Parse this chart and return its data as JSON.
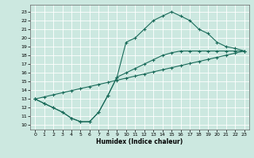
{
  "xlabel": "Humidex (Indice chaleur)",
  "bg_color": "#cce8e0",
  "line_color": "#1a6b5a",
  "xlim": [
    -0.5,
    23.5
  ],
  "ylim": [
    9.5,
    23.8
  ],
  "xticks": [
    0,
    1,
    2,
    3,
    4,
    5,
    6,
    7,
    8,
    9,
    10,
    11,
    12,
    13,
    14,
    15,
    16,
    17,
    18,
    19,
    20,
    21,
    22,
    23
  ],
  "yticks": [
    10,
    11,
    12,
    13,
    14,
    15,
    16,
    17,
    18,
    19,
    20,
    21,
    22,
    23
  ],
  "line1_x": [
    0,
    1,
    2,
    3,
    4,
    5,
    6,
    7,
    8,
    9,
    10,
    11,
    12,
    13,
    14,
    15,
    16,
    17,
    18,
    19,
    20,
    21,
    22,
    23
  ],
  "line1_y": [
    13.0,
    12.5,
    12.0,
    11.5,
    10.8,
    10.4,
    10.4,
    11.5,
    13.4,
    15.5,
    19.5,
    20.0,
    21.0,
    22.0,
    22.5,
    23.0,
    22.5,
    22.0,
    21.0,
    20.5,
    19.5,
    19.0,
    18.8,
    18.5
  ],
  "line2_x": [
    0,
    1,
    2,
    3,
    4,
    5,
    6,
    7,
    8,
    9,
    10,
    11,
    12,
    13,
    14,
    15,
    16,
    17,
    18,
    19,
    20,
    21,
    22,
    23
  ],
  "line2_y": [
    13.0,
    13.24,
    13.48,
    13.72,
    13.96,
    14.2,
    14.43,
    14.67,
    14.91,
    15.15,
    15.39,
    15.63,
    15.87,
    16.11,
    16.35,
    16.59,
    16.83,
    17.07,
    17.3,
    17.54,
    17.78,
    18.02,
    18.26,
    18.5
  ],
  "line3_x": [
    0,
    1,
    2,
    3,
    4,
    5,
    6,
    7,
    8,
    9,
    10,
    11,
    12,
    13,
    14,
    15,
    16,
    17,
    18,
    19,
    20,
    21,
    22,
    23
  ],
  "line3_y": [
    13.0,
    12.5,
    12.0,
    11.5,
    10.8,
    10.4,
    10.4,
    11.5,
    13.4,
    15.5,
    16.0,
    16.5,
    17.0,
    17.5,
    18.0,
    18.3,
    18.5,
    18.5,
    18.5,
    18.5,
    18.5,
    18.5,
    18.5,
    18.5
  ]
}
